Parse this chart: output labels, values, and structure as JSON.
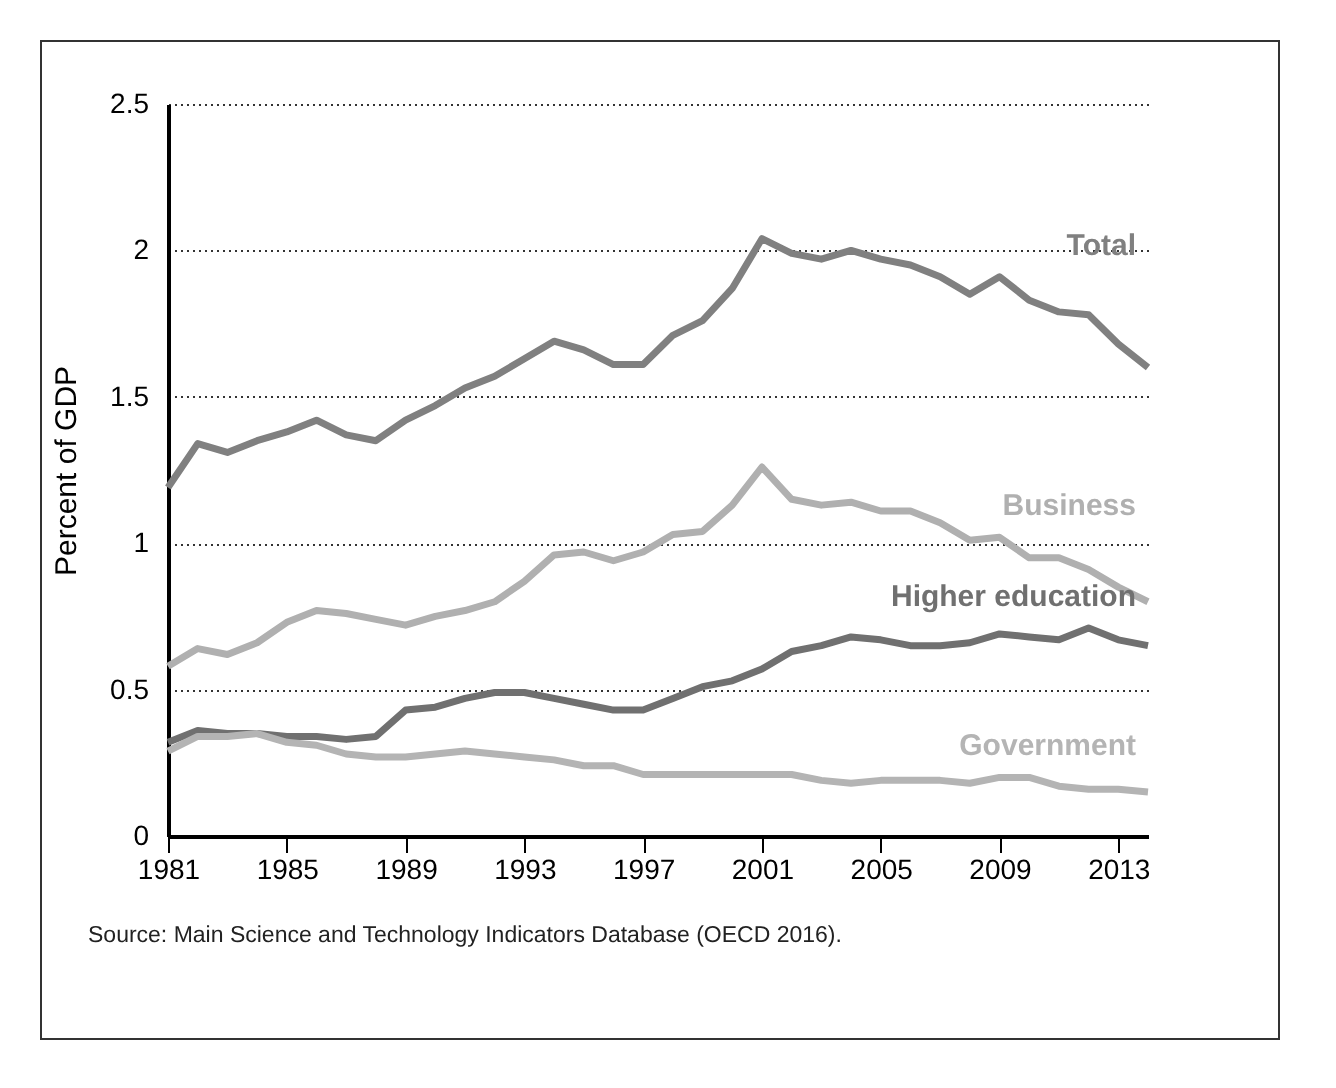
{
  "chart_data": {
    "type": "line",
    "ylabel": "Percent of GDP",
    "x": [
      1981,
      1982,
      1983,
      1984,
      1985,
      1986,
      1987,
      1988,
      1989,
      1990,
      1991,
      1992,
      1993,
      1994,
      1995,
      1996,
      1997,
      1998,
      1999,
      2000,
      2001,
      2002,
      2003,
      2004,
      2005,
      2006,
      2007,
      2008,
      2009,
      2010,
      2011,
      2012,
      2013,
      2014
    ],
    "series": [
      {
        "name": "Total",
        "color": "#808080",
        "values": [
          1.19,
          1.34,
          1.31,
          1.35,
          1.38,
          1.42,
          1.37,
          1.35,
          1.42,
          1.47,
          1.53,
          1.57,
          1.63,
          1.69,
          1.66,
          1.61,
          1.61,
          1.71,
          1.76,
          1.87,
          2.04,
          1.99,
          1.97,
          2.0,
          1.97,
          1.95,
          1.91,
          1.85,
          1.91,
          1.83,
          1.79,
          1.78,
          1.68,
          1.6
        ]
      },
      {
        "name": "Business",
        "color": "#b0b0b0",
        "values": [
          0.58,
          0.64,
          0.62,
          0.66,
          0.73,
          0.77,
          0.76,
          0.74,
          0.72,
          0.75,
          0.77,
          0.8,
          0.87,
          0.96,
          0.97,
          0.94,
          0.97,
          1.03,
          1.04,
          1.13,
          1.26,
          1.15,
          1.13,
          1.14,
          1.11,
          1.11,
          1.07,
          1.01,
          1.02,
          0.95,
          0.95,
          0.91,
          0.85,
          0.8
        ]
      },
      {
        "name": "Higher education",
        "color": "#707070",
        "values": [
          0.32,
          0.36,
          0.35,
          0.35,
          0.34,
          0.34,
          0.33,
          0.34,
          0.43,
          0.44,
          0.47,
          0.49,
          0.49,
          0.47,
          0.45,
          0.43,
          0.43,
          0.47,
          0.51,
          0.53,
          0.57,
          0.63,
          0.65,
          0.68,
          0.67,
          0.65,
          0.65,
          0.66,
          0.69,
          0.68,
          0.67,
          0.71,
          0.67,
          0.65
        ]
      },
      {
        "name": "Government",
        "color": "#b4b4b4",
        "values": [
          0.29,
          0.34,
          0.34,
          0.35,
          0.32,
          0.31,
          0.28,
          0.27,
          0.27,
          0.28,
          0.29,
          0.28,
          0.27,
          0.26,
          0.24,
          0.24,
          0.21,
          0.21,
          0.21,
          0.21,
          0.21,
          0.21,
          0.19,
          0.18,
          0.19,
          0.19,
          0.19,
          0.18,
          0.2,
          0.2,
          0.17,
          0.16,
          0.16,
          0.15
        ]
      }
    ],
    "xlim": [
      1981,
      2014
    ],
    "xticks": [
      1981,
      1985,
      1989,
      1993,
      1997,
      2001,
      2005,
      2009,
      2013
    ],
    "ylim": [
      0,
      2.5
    ],
    "yticks": [
      0,
      0.5,
      1,
      1.5,
      2,
      2.5
    ],
    "grid": "y",
    "legend": false,
    "line_style": "solid",
    "marker": "none",
    "annotations": [
      "Source: Main Science and Technology Indicators Database (OECD 2016)."
    ]
  }
}
